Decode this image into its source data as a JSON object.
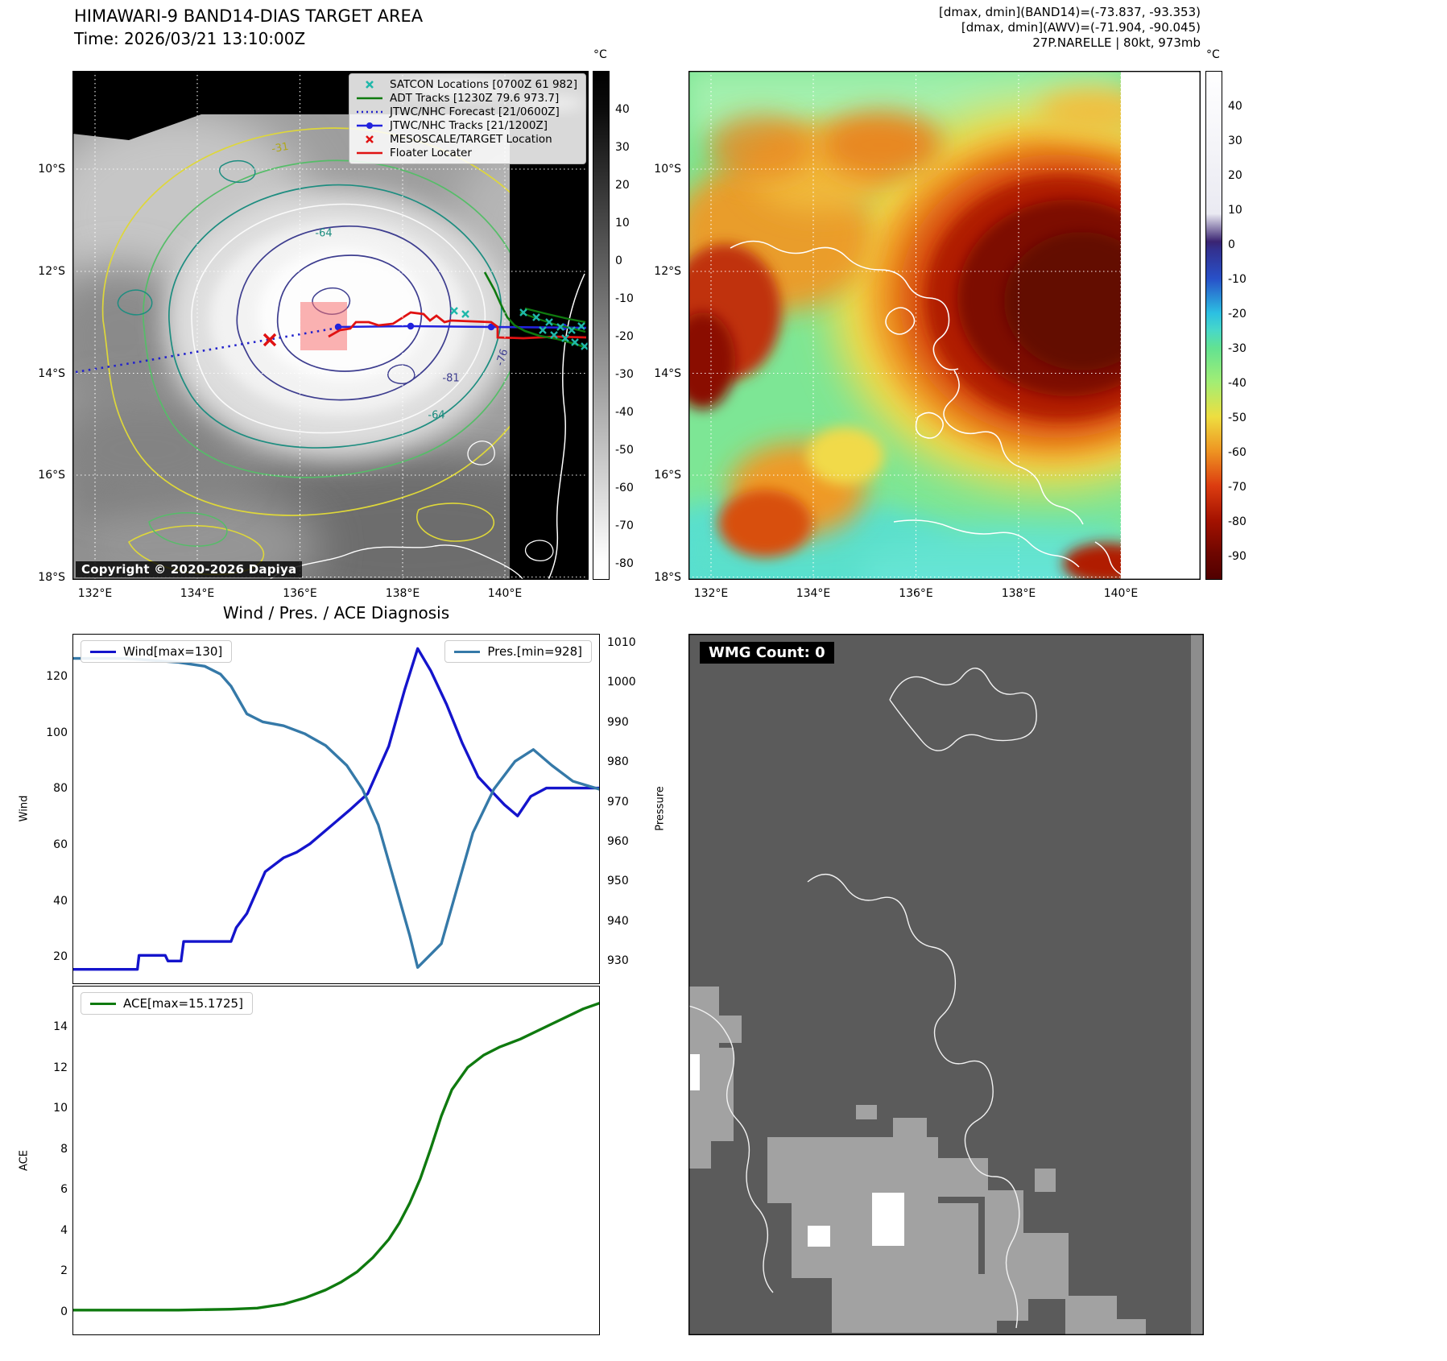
{
  "left_panel": {
    "title": "HIMAWARI-9 BAND14-DIAS TARGET AREA",
    "subtitle": "Time: 2026/03/21 13:10:00Z",
    "copyright": "Copyright © 2020-2026 Dapiya",
    "legend": [
      {
        "label": "SATCON Locations [0700Z 61 982]",
        "marker": "x-marker",
        "color": "#1fb8aa"
      },
      {
        "label": "ADT Tracks [1230Z 79.6 973.7]",
        "marker": "line",
        "color": "#0f7a0f"
      },
      {
        "label": "JTWC/NHC Forecast [21/0600Z]",
        "marker": "dotted-line",
        "color": "#2222cc"
      },
      {
        "label": "JTWC/NHC Tracks [21/1200Z]",
        "marker": "line-dot",
        "color": "#2222dd"
      },
      {
        "label": "MESOSCALE/TARGET Location",
        "marker": "x-marker",
        "color": "#e01212"
      },
      {
        "label": "Floater Locater",
        "marker": "line",
        "color": "#e01212"
      }
    ],
    "lat_ticks": [
      "10°S",
      "12°S",
      "14°S",
      "16°S",
      "18°S"
    ],
    "lon_ticks": [
      "132°E",
      "134°E",
      "136°E",
      "138°E",
      "140°E"
    ],
    "contour_labels": [
      "-31",
      "-64",
      "-81",
      "-76",
      "-64"
    ],
    "colorbar": {
      "unit": "°C",
      "ticks": [
        "40",
        "30",
        "20",
        "10",
        "0",
        "-10",
        "-20",
        "-30",
        "-40",
        "-50",
        "-60",
        "-70",
        "-80"
      ]
    }
  },
  "right_panel": {
    "header_lines": [
      "[dmax, dmin](BAND14)=(-73.837, -93.353)",
      "[dmax, dmin](AWV)=(-71.904, -90.045)",
      "27P.NARELLE | 80kt, 973mb"
    ],
    "lat_ticks": [
      "10°S",
      "12°S",
      "14°S",
      "16°S",
      "18°S"
    ],
    "lon_ticks": [
      "132°E",
      "134°E",
      "136°E",
      "138°E",
      "140°E"
    ],
    "colorbar": {
      "unit": "°C",
      "ticks": [
        "40",
        "30",
        "20",
        "10",
        "0",
        "-10",
        "-20",
        "-30",
        "-40",
        "-50",
        "-60",
        "-70",
        "-80",
        "-90"
      ]
    }
  },
  "diagnosis": {
    "title": "Wind / Pres. / ACE Diagnosis",
    "wind_legend": "Wind[max=130]",
    "pres_legend": "Pres.[min=928]",
    "ace_legend": "ACE[max=15.1725]",
    "ylabel_wind": "Wind",
    "ylabel_pressure": "Pressure",
    "ylabel_ace": "ACE"
  },
  "wmg": {
    "label": "WMG Count: 0"
  },
  "chart_data": [
    {
      "type": "line",
      "title": "Wind / Pres. / ACE Diagnosis",
      "panel": "wind-pressure",
      "grid": false,
      "axes": {
        "left": {
          "label": "Wind",
          "ticks": [
            20,
            40,
            60,
            80,
            100,
            120
          ],
          "range": [
            10,
            135
          ]
        },
        "right": {
          "label": "Pressure",
          "ticks": [
            930,
            940,
            950,
            960,
            970,
            980,
            990,
            1000,
            1010
          ],
          "range": [
            924,
            1012
          ]
        }
      },
      "series": [
        {
          "name": "Wind",
          "legend": "Wind[max=130]",
          "max": 130,
          "axis": "left",
          "color": "#1414cc",
          "x": [
            0,
            0.08,
            0.122,
            0.125,
            0.175,
            0.18,
            0.205,
            0.21,
            0.3,
            0.31,
            0.33,
            0.365,
            0.4,
            0.425,
            0.45,
            0.5,
            0.525,
            0.56,
            0.6,
            0.63,
            0.655,
            0.68,
            0.71,
            0.74,
            0.77,
            0.8,
            0.82,
            0.845,
            0.87,
            0.9,
            1.0
          ],
          "values": [
            15,
            15,
            15,
            20,
            20,
            18,
            18,
            25,
            25,
            30,
            35,
            50,
            55,
            57,
            60,
            68,
            72,
            78,
            95,
            115,
            130,
            122,
            110,
            96,
            84,
            78,
            74,
            70,
            77,
            80,
            80
          ]
        },
        {
          "name": "Pres.",
          "legend": "Pres.[min=928]",
          "min": 928,
          "axis": "right",
          "color": "#3579a8",
          "x": [
            0,
            0.1,
            0.2,
            0.25,
            0.28,
            0.3,
            0.33,
            0.36,
            0.4,
            0.44,
            0.48,
            0.52,
            0.55,
            0.58,
            0.61,
            0.64,
            0.655,
            0.67,
            0.7,
            0.73,
            0.76,
            0.8,
            0.84,
            0.875,
            0.91,
            0.95,
            1.0
          ],
          "values": [
            1006,
            1006,
            1005,
            1004,
            1002,
            999,
            992,
            990,
            989,
            987,
            984,
            979,
            973,
            964,
            950,
            936,
            928,
            930,
            934,
            948,
            962,
            973,
            980,
            983,
            979,
            975,
            973
          ]
        }
      ]
    },
    {
      "type": "line",
      "panel": "ace",
      "grid": false,
      "axes": {
        "left": {
          "label": "ACE",
          "ticks": [
            0,
            2,
            4,
            6,
            8,
            10,
            12,
            14
          ],
          "range": [
            -1.2,
            16
          ]
        }
      },
      "series": [
        {
          "name": "ACE",
          "legend": "ACE[max=15.1725]",
          "max": 15.1725,
          "axis": "left",
          "color": "#0f7a0f",
          "x": [
            0,
            0.2,
            0.3,
            0.35,
            0.4,
            0.44,
            0.48,
            0.51,
            0.54,
            0.57,
            0.6,
            0.62,
            0.64,
            0.66,
            0.68,
            0.7,
            0.72,
            0.75,
            0.78,
            0.81,
            0.85,
            0.89,
            0.93,
            0.97,
            1.0
          ],
          "values": [
            0,
            0,
            0.05,
            0.1,
            0.3,
            0.6,
            1.0,
            1.4,
            1.9,
            2.6,
            3.5,
            4.3,
            5.3,
            6.5,
            8.0,
            9.6,
            10.9,
            12.0,
            12.6,
            13.0,
            13.4,
            13.9,
            14.4,
            14.9,
            15.17
          ]
        }
      ]
    }
  ]
}
